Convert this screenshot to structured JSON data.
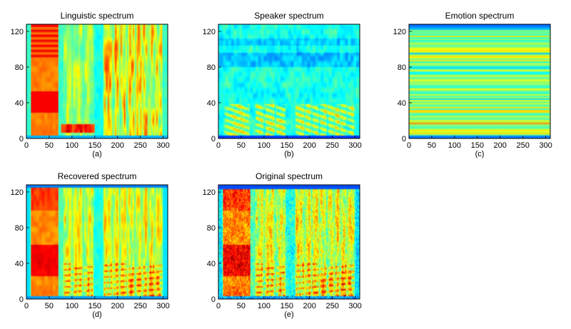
{
  "figure": {
    "panels": [
      {
        "id": "a",
        "title": "Linguistic spectrum",
        "caption": "(a)",
        "pattern": "linguistic"
      },
      {
        "id": "b",
        "title": "Speaker spectrum",
        "caption": "(b)",
        "pattern": "speaker"
      },
      {
        "id": "c",
        "title": "Emotion spectrum",
        "caption": "(c)",
        "pattern": "emotion"
      },
      {
        "id": "d",
        "title": "Recovered spectrum",
        "caption": "(d)",
        "pattern": "recovered"
      },
      {
        "id": "e",
        "title": "Original spectrum",
        "caption": "(e)",
        "pattern": "original"
      }
    ]
  },
  "chart_data": {
    "type": "heatmap",
    "colormap": "jet",
    "xlim": [
      0,
      310
    ],
    "ylim": [
      0,
      128
    ],
    "x_ticks": [
      0,
      50,
      100,
      150,
      200,
      250,
      300
    ],
    "y_ticks": [
      0,
      40,
      80,
      120
    ],
    "charts": [
      {
        "title": "Linguistic spectrum",
        "caption": "(a)"
      },
      {
        "title": "Speaker spectrum",
        "caption": "(b)"
      },
      {
        "title": "Emotion spectrum",
        "caption": "(c)"
      },
      {
        "title": "Recovered spectrum",
        "caption": "(d)"
      },
      {
        "title": "Original spectrum",
        "caption": "(e)"
      }
    ]
  }
}
